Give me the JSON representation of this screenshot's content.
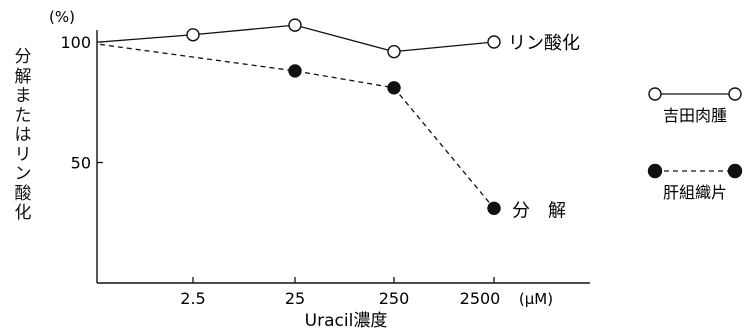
{
  "chart_data": {
    "type": "line",
    "title": "",
    "xlabel": "Uracil濃度",
    "ylabel": "分解またはリン酸化",
    "x_unit": "(μM)",
    "y_unit": "(%)",
    "x_scale": "log",
    "categories": [
      "0",
      "2.5",
      "25",
      "250",
      "2500"
    ],
    "x_tick_labels": [
      "2.5",
      "25",
      "250",
      "2500"
    ],
    "y_ticks": [
      100,
      50
    ],
    "ylim": [
      0,
      110
    ],
    "grid": false,
    "legend_position": "right",
    "series": [
      {
        "name": "吉田肉腫",
        "label": "リン酸化",
        "line_style": "solid",
        "marker": "open-circle",
        "color": "#111111",
        "values": [
          100,
          103,
          107,
          96,
          100
        ]
      },
      {
        "name": "肝組織片",
        "label": "分　解",
        "line_style": "dashed",
        "marker": "filled-circle",
        "color": "#111111",
        "values": [
          99,
          null,
          88,
          81,
          31
        ]
      }
    ]
  }
}
